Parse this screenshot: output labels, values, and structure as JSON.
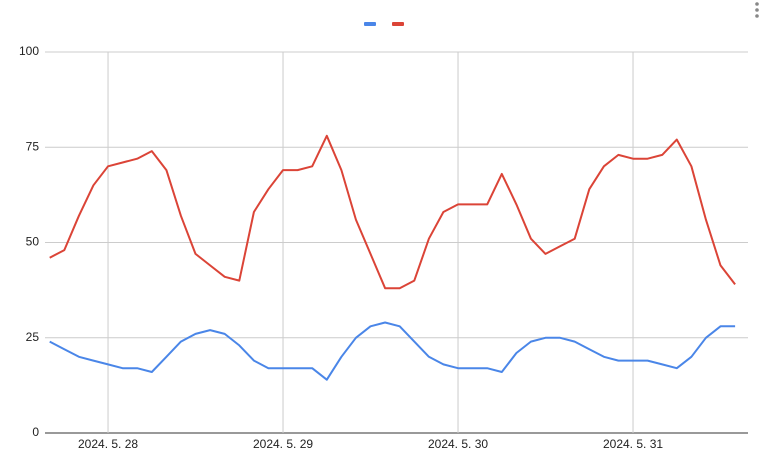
{
  "chart_data": {
    "type": "line",
    "categories": [
      null,
      null,
      null,
      null,
      "2024. 5. 28",
      null,
      null,
      null,
      null,
      null,
      null,
      null,
      null,
      null,
      null,
      null,
      "2024. 5. 29",
      null,
      null,
      null,
      null,
      null,
      null,
      null,
      null,
      null,
      null,
      null,
      "2024. 5. 30",
      null,
      null,
      null,
      null,
      null,
      null,
      null,
      null,
      null,
      null,
      null,
      "2024. 5. 31",
      null,
      null,
      null,
      null,
      null,
      null,
      null
    ],
    "series": [
      {
        "color": "#4a86e8",
        "values": [
          24,
          22,
          20,
          19,
          18,
          17,
          17,
          16,
          20,
          24,
          26,
          27,
          26,
          23,
          19,
          17,
          17,
          17,
          17,
          14,
          20,
          25,
          28,
          29,
          28,
          24,
          20,
          18,
          17,
          17,
          17,
          16,
          21,
          24,
          25,
          25,
          24,
          22,
          20,
          19,
          19,
          19,
          18,
          17,
          20,
          25,
          28,
          28
        ]
      },
      {
        "color": "#db4437",
        "values": [
          46,
          48,
          57,
          65,
          70,
          71,
          72,
          74,
          69,
          57,
          47,
          44,
          41,
          40,
          58,
          64,
          69,
          69,
          70,
          78,
          69,
          56,
          47,
          38,
          38,
          40,
          51,
          58,
          60,
          60,
          60,
          68,
          60,
          51,
          47,
          49,
          51,
          64,
          70,
          73,
          72,
          72,
          73,
          77,
          70,
          56,
          44,
          39
        ]
      }
    ],
    "ylim": [
      0,
      100
    ],
    "yticks": [
      0,
      25,
      50,
      75,
      100
    ],
    "grid": true
  }
}
